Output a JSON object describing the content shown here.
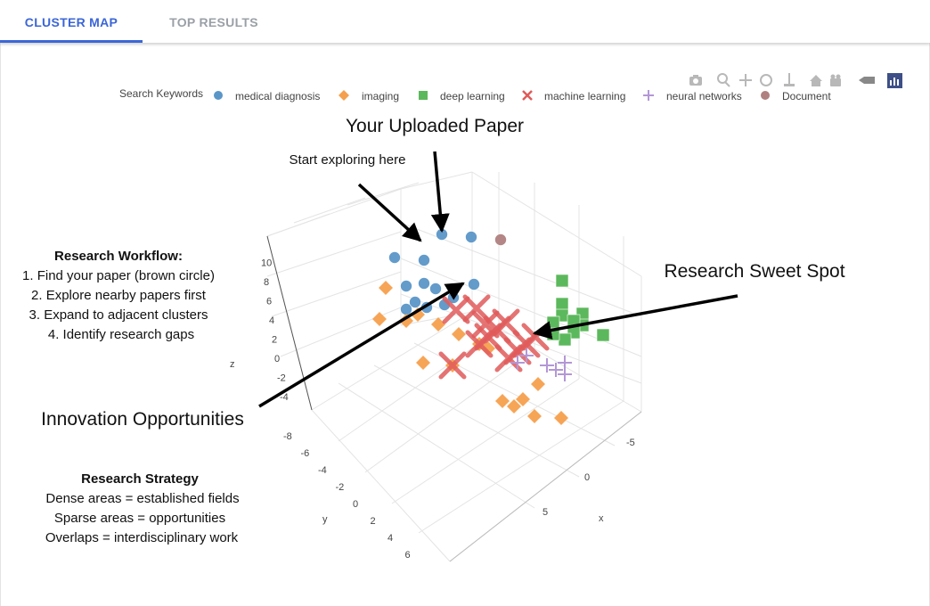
{
  "tabs": [
    {
      "label": "CLUSTER MAP",
      "active": true
    },
    {
      "label": "TOP RESULTS",
      "active": false
    }
  ],
  "toolbar": {
    "icons": [
      "camera-icon",
      "zoom-icon",
      "pan-icon",
      "orbit-rotation-icon",
      "turntable-rotation-icon",
      "home-icon",
      "video-camera-icon",
      "hover-toggle-icon",
      "plotly-logo-icon"
    ]
  },
  "legend": {
    "title": "Search Keywords",
    "items": [
      {
        "label": "medical diagnosis",
        "symbol": "circle",
        "color": "#5b96c8"
      },
      {
        "label": "imaging",
        "symbol": "diamond",
        "color": "#f5a04e"
      },
      {
        "label": "deep learning",
        "symbol": "square",
        "color": "#5cb85c"
      },
      {
        "label": "machine learning",
        "symbol": "x",
        "color": "#e05a5a"
      },
      {
        "label": "neural networks",
        "symbol": "cross",
        "color": "#b397d6"
      },
      {
        "label": "Document",
        "symbol": "circle",
        "color": "#b08080"
      }
    ]
  },
  "annotations": {
    "uploaded_paper": "Your Uploaded Paper",
    "start_exploring": "Start exploring here",
    "sweet_spot": "Research Sweet Spot",
    "innovation": "Innovation Opportunities",
    "workflow_title": "Research Workflow:",
    "workflow_steps": [
      "1. Find your paper (brown circle)",
      "2. Explore nearby papers first",
      "3. Expand to adjacent clusters",
      "4. Identify research gaps"
    ],
    "strategy_title": "Research Strategy",
    "strategy_lines": [
      "Dense areas = established fields",
      "Sparse areas = opportunities",
      "Overlaps = interdisciplinary work"
    ]
  },
  "chart_data": {
    "type": "scatter3d",
    "axes": {
      "x": {
        "title": "x",
        "ticks": [
          "-5",
          "0",
          "5"
        ]
      },
      "y": {
        "title": "y",
        "ticks": [
          "-8",
          "-6",
          "-4",
          "-2",
          "0",
          "2",
          "4",
          "6"
        ]
      },
      "z": {
        "title": "z",
        "ticks": [
          "-4",
          "-2",
          "0",
          "2",
          "4",
          "6",
          "8",
          "10"
        ]
      }
    },
    "grid": true,
    "legend_position": "top",
    "series": [
      {
        "name": "medical diagnosis",
        "symbol": "circle",
        "color": "#5b96c8",
        "points": [
          [
            -2,
            -7,
            9
          ],
          [
            -3,
            -6,
            8
          ],
          [
            -4,
            -3,
            4
          ],
          [
            -2,
            -5,
            3
          ],
          [
            -1,
            -5,
            5
          ],
          [
            -3,
            -4,
            5
          ],
          [
            -3,
            -4,
            3
          ],
          [
            -2,
            -3,
            3
          ],
          [
            -2,
            -4,
            2
          ],
          [
            -3,
            -2,
            2
          ],
          [
            -2,
            -2,
            1
          ],
          [
            -3,
            -3,
            1
          ],
          [
            -3,
            -2,
            0
          ]
        ]
      },
      {
        "name": "imaging",
        "symbol": "diamond",
        "color": "#f5a04e",
        "points": [
          [
            -4,
            -2,
            1
          ],
          [
            -3,
            -2,
            -1
          ],
          [
            -3,
            1,
            -2
          ],
          [
            -2,
            -1,
            0
          ],
          [
            -1,
            -1,
            0
          ],
          [
            0,
            -1,
            0
          ],
          [
            1,
            -1,
            0
          ],
          [
            1,
            -2,
            0
          ],
          [
            3,
            -3,
            -1
          ],
          [
            0,
            3,
            -4
          ],
          [
            1,
            2,
            -3
          ],
          [
            3,
            1,
            -4
          ],
          [
            4,
            2,
            -4
          ],
          [
            4,
            1,
            -3
          ],
          [
            5,
            2,
            -4
          ],
          [
            5,
            -1,
            -3
          ]
        ]
      },
      {
        "name": "deep learning",
        "symbol": "square",
        "color": "#5cb85c",
        "points": [
          [
            2,
            -8,
            9
          ],
          [
            2,
            -8,
            7
          ],
          [
            3,
            -8,
            7
          ],
          [
            2,
            -8,
            6
          ],
          [
            3,
            -8,
            6
          ],
          [
            3,
            -7,
            6
          ],
          [
            4,
            -8,
            6
          ],
          [
            2,
            -7,
            5
          ],
          [
            3,
            -7,
            5
          ],
          [
            3,
            -6,
            4
          ],
          [
            2,
            -7,
            4
          ]
        ]
      },
      {
        "name": "machine learning",
        "symbol": "x",
        "color": "#e05a5a",
        "points": [
          [
            -1,
            -3,
            2
          ],
          [
            0,
            -4,
            2
          ],
          [
            0,
            -3,
            3
          ],
          [
            1,
            -4,
            3
          ],
          [
            1,
            -3,
            2
          ],
          [
            2,
            -4,
            2
          ],
          [
            1,
            -2,
            1
          ],
          [
            2,
            -3,
            1
          ],
          [
            2,
            -2,
            0
          ],
          [
            1,
            -1,
            0
          ],
          [
            2,
            -5,
            3
          ],
          [
            1,
            2,
            -3
          ]
        ]
      },
      {
        "name": "neural networks",
        "symbol": "cross",
        "color": "#b397d6",
        "points": [
          [
            3,
            -6,
            2
          ],
          [
            3,
            -5,
            1
          ],
          [
            2,
            -4,
            1
          ],
          [
            3,
            -4,
            1
          ],
          [
            2,
            -3,
            0
          ],
          [
            3,
            -6,
            1
          ]
        ]
      },
      {
        "name": "Document",
        "symbol": "circle",
        "color": "#b08080",
        "points": [
          [
            -1,
            -8,
            10
          ]
        ]
      }
    ]
  }
}
